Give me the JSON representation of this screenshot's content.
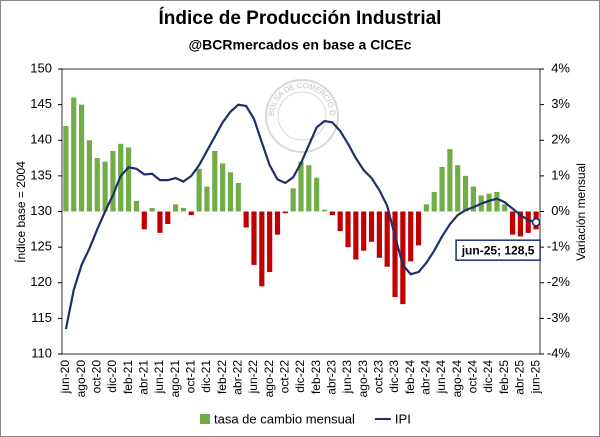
{
  "chart_data": {
    "type": "combo",
    "title": "Índice de Producción Industrial",
    "subtitle": "@BCRmercados en base a CICEc",
    "watermark": "BOLSA DE COMERCIO DE ROSARIO",
    "y_label": "Índice base = 2004",
    "y2_label": "Variación mensual",
    "categories": [
      "jun-20",
      null,
      "ago-20",
      null,
      "oct-20",
      null,
      "dic-20",
      null,
      "feb-21",
      null,
      "abr-21",
      null,
      "jun-21",
      null,
      "ago-21",
      null,
      "oct-21",
      null,
      "dic-21",
      null,
      "feb-22",
      null,
      "abr-22",
      null,
      "jun-22",
      null,
      "ago-22",
      null,
      "oct-22",
      null,
      "dic-22",
      null,
      "feb-23",
      null,
      "abr-23",
      null,
      "jun-23",
      null,
      "ago-23",
      null,
      "oct-23",
      null,
      "dic-23",
      null,
      "feb-24",
      null,
      "abr-24",
      null,
      "jun-24",
      null,
      "ago-24",
      null,
      "oct-24",
      null,
      "dic-24",
      null,
      "feb-25",
      null,
      "abr-25",
      null,
      "jun-25"
    ],
    "series": [
      {
        "name": "tasa de cambio mensual",
        "type": "bar",
        "axis": "y2",
        "color": "#70ad47",
        "negative_color": "#c00000",
        "values": [
          2.4,
          3.2,
          3.0,
          2.0,
          1.5,
          1.4,
          1.7,
          1.9,
          1.8,
          0.3,
          -0.5,
          0.1,
          -0.6,
          -0.35,
          0.2,
          0.1,
          -0.1,
          1.2,
          0.7,
          1.7,
          1.35,
          1.1,
          0.8,
          -0.45,
          -1.5,
          -2.1,
          -1.7,
          -0.65,
          -0.05,
          0.65,
          1.4,
          1.3,
          0.95,
          0.05,
          -0.1,
          -0.55,
          -1.0,
          -1.35,
          -1.1,
          -0.85,
          -1.3,
          -1.55,
          -2.4,
          -2.6,
          -1.4,
          -0.95,
          0.2,
          0.55,
          1.25,
          1.75,
          1.3,
          1.0,
          0.7,
          0.45,
          0.5,
          0.55,
          0.2,
          -0.65,
          -0.7,
          -0.6,
          -0.5
        ]
      },
      {
        "name": "IPI",
        "type": "line",
        "axis": "y",
        "color": "#1f2f6b",
        "values": [
          113.5,
          119,
          122.5,
          124.8,
          127.5,
          130,
          132.3,
          135,
          136.2,
          136,
          135.2,
          135.3,
          134.4,
          134.4,
          134.7,
          134.2,
          135,
          136.5,
          138.5,
          140.5,
          142.5,
          144,
          145,
          144.8,
          143,
          139.7,
          136.5,
          134.5,
          134,
          134.8,
          136.8,
          139.3,
          141.8,
          142.7,
          142.5,
          141.3,
          139.5,
          137.5,
          135.8,
          134.7,
          133,
          130.8,
          126.5,
          122.5,
          121.2,
          121.5,
          122.8,
          124.5,
          126.5,
          128.2,
          129.5,
          130.2,
          130.6,
          131.1,
          131.5,
          131.8,
          131.3,
          130.4,
          129.5,
          128.8,
          128.5
        ]
      }
    ],
    "annotation": "jun-25; 128,5",
    "ylim": [
      110,
      150
    ],
    "yticks": [
      110,
      115,
      120,
      125,
      130,
      135,
      140,
      145,
      150
    ],
    "y2lim": [
      -4,
      4
    ],
    "y2ticks": [
      {
        "value": -4,
        "label": "-4%"
      },
      {
        "value": -3,
        "label": "-3%"
      },
      {
        "value": -2,
        "label": "-2%"
      },
      {
        "value": -1,
        "label": "-1%"
      },
      {
        "value": 0,
        "label": "0%"
      },
      {
        "value": 1,
        "label": "1%"
      },
      {
        "value": 2,
        "label": "2%"
      },
      {
        "value": 3,
        "label": "3%"
      },
      {
        "value": 4,
        "label": "4%"
      }
    ],
    "legend": "bottom"
  }
}
